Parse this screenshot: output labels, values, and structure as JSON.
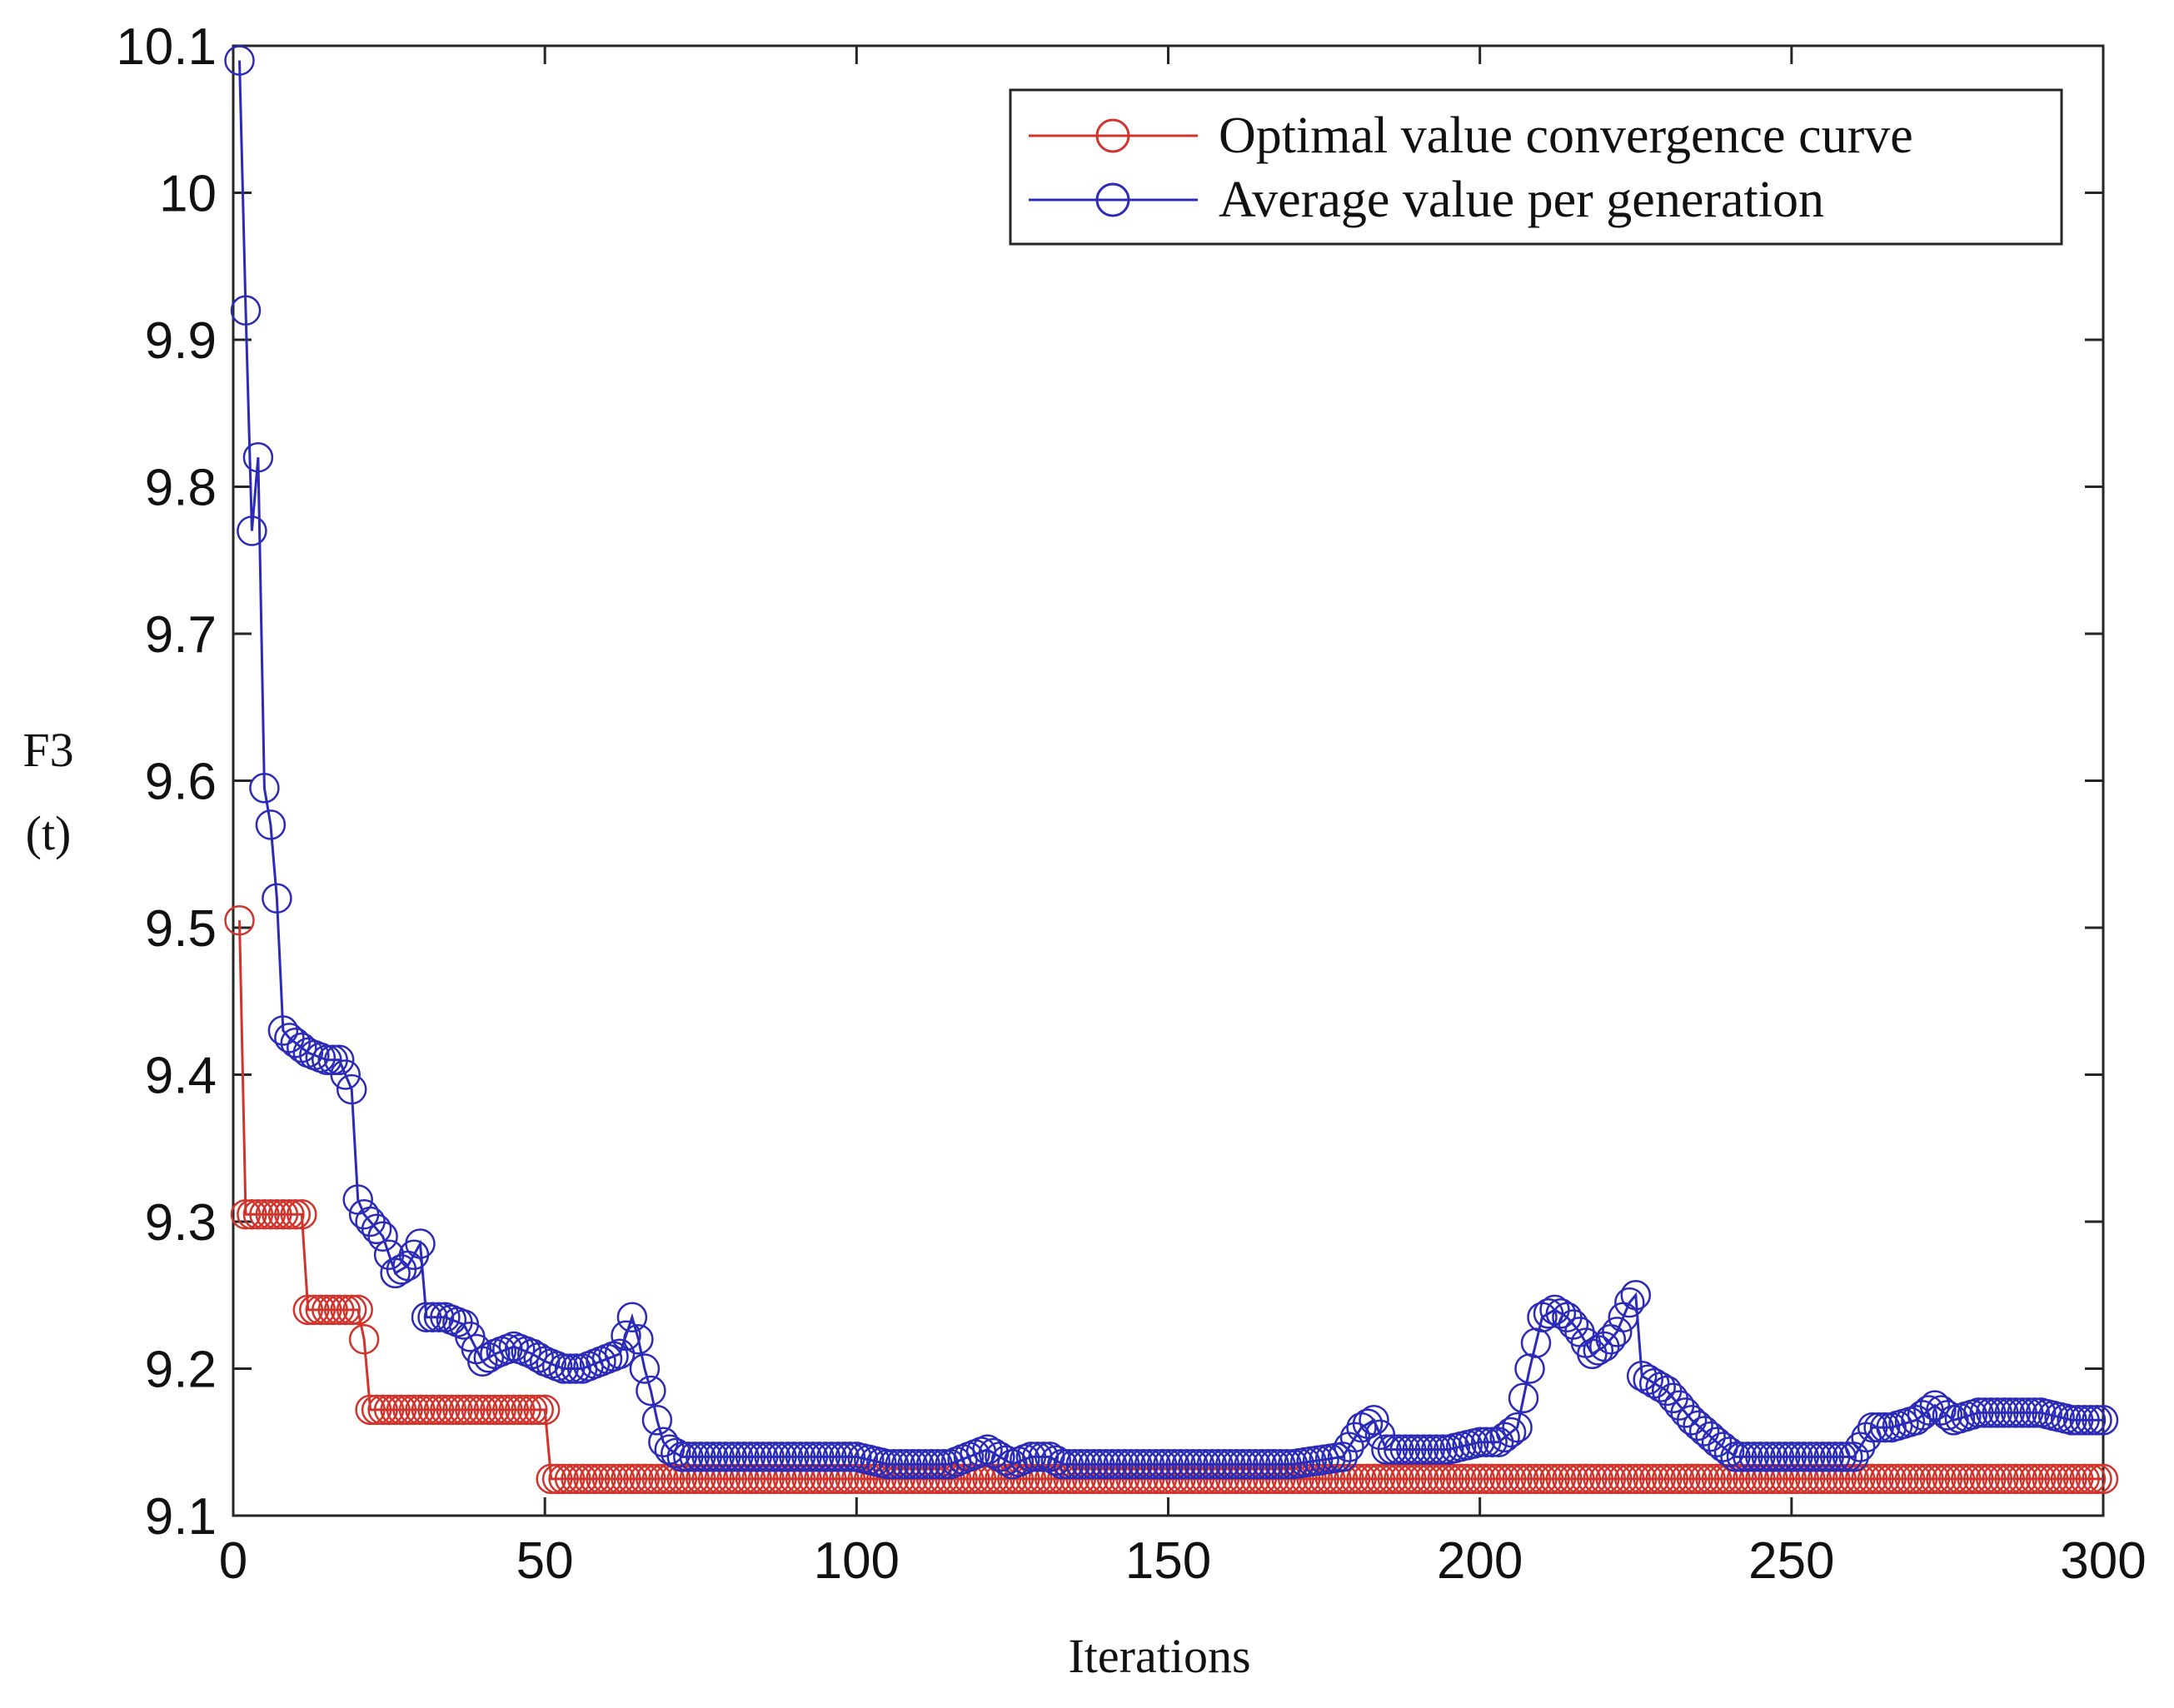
{
  "chart_data": {
    "type": "line",
    "title": "",
    "xlabel": "Iterations",
    "ylabel": [
      "F3",
      "(t)"
    ],
    "xlim": [
      0,
      300
    ],
    "ylim": [
      9.1,
      10.1
    ],
    "xticks": [
      0,
      50,
      100,
      150,
      200,
      250,
      300
    ],
    "yticks": [
      9.1,
      9.2,
      9.3,
      9.4,
      9.5,
      9.6,
      9.7,
      9.8,
      9.9,
      10,
      10.1
    ],
    "ytick_labels": [
      "9.1",
      "9.2",
      "9.3",
      "9.4",
      "9.5",
      "9.6",
      "9.7",
      "9.8",
      "9.9",
      "10",
      "10.1"
    ],
    "grid": false,
    "legend_position": "top-right",
    "series": [
      {
        "name": "Optimal value convergence curve",
        "color": "#d0342c",
        "marker": "circle",
        "step": true,
        "x": [
          1,
          2,
          11,
          12,
          20,
          21,
          22,
          50,
          51,
          300
        ],
        "y": [
          9.505,
          9.305,
          9.305,
          9.24,
          9.24,
          9.22,
          9.172,
          9.172,
          9.125,
          9.125
        ]
      },
      {
        "name": "Average value per generation",
        "color": "#2b2bb8",
        "marker": "circle",
        "step": false,
        "x": [
          1,
          2,
          3,
          4,
          5,
          6,
          7,
          8,
          9,
          12,
          15,
          17,
          18,
          19,
          20,
          21,
          22,
          24,
          26,
          28,
          30,
          31,
          34,
          37,
          40,
          42,
          45,
          48,
          50,
          53,
          56,
          59,
          62,
          64,
          65,
          66,
          67,
          68,
          69,
          70,
          72,
          75,
          80,
          90,
          100,
          105,
          110,
          115,
          118,
          121,
          123,
          125,
          128,
          131,
          133,
          135,
          140,
          150,
          160,
          170,
          178,
          181,
          183,
          185,
          190,
          195,
          200,
          203,
          206,
          208,
          210,
          212,
          214,
          216,
          218,
          220,
          222,
          224,
          225,
          226,
          230,
          234,
          238,
          241,
          245,
          250,
          255,
          260,
          263,
          266,
          270,
          273,
          276,
          280,
          285,
          290,
          295,
          300
        ],
        "y": [
          10.09,
          9.92,
          9.77,
          9.82,
          9.595,
          9.57,
          9.52,
          9.43,
          9.425,
          9.415,
          9.41,
          9.41,
          9.4,
          9.39,
          9.315,
          9.305,
          9.3,
          9.29,
          9.265,
          9.27,
          9.285,
          9.235,
          9.235,
          9.23,
          9.205,
          9.21,
          9.215,
          9.21,
          9.205,
          9.2,
          9.2,
          9.205,
          9.21,
          9.235,
          9.22,
          9.2,
          9.185,
          9.165,
          9.15,
          9.145,
          9.14,
          9.14,
          9.14,
          9.14,
          9.14,
          9.135,
          9.135,
          9.135,
          9.14,
          9.145,
          9.14,
          9.135,
          9.14,
          9.14,
          9.135,
          9.135,
          9.135,
          9.135,
          9.135,
          9.135,
          9.14,
          9.16,
          9.165,
          9.145,
          9.145,
          9.145,
          9.15,
          9.15,
          9.16,
          9.2,
          9.235,
          9.24,
          9.235,
          9.225,
          9.21,
          9.215,
          9.225,
          9.245,
          9.25,
          9.195,
          9.185,
          9.165,
          9.15,
          9.14,
          9.14,
          9.14,
          9.14,
          9.14,
          9.16,
          9.16,
          9.165,
          9.175,
          9.165,
          9.17,
          9.17,
          9.17,
          9.165,
          9.165
        ]
      }
    ]
  }
}
